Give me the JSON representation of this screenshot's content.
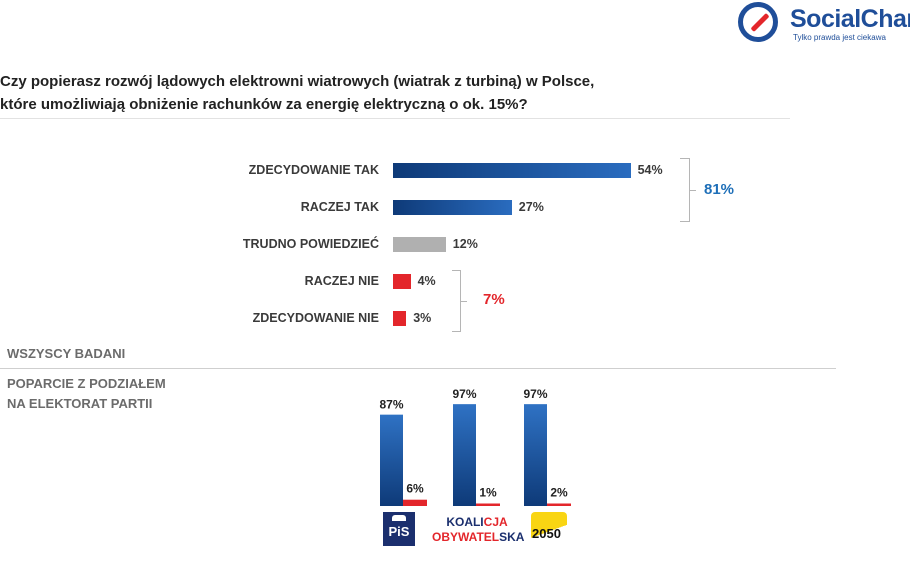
{
  "brand": {
    "name": "SocialChar",
    "tagline": "Tylko prawda jest ciekawa"
  },
  "question": {
    "line1": "Czy popierasz rozwój lądowych elektrowni wiatrowych (wiatrak z turbiną) w Polsce,",
    "line2": "które umożliwiają obniżenie rachunków za energię elektryczną o ok. 15%?"
  },
  "colors": {
    "support": "#1a4f8f",
    "neutral": "#b0b0b0",
    "oppose": "#e3262b",
    "total_support": "#1e6fb8",
    "total_oppose": "#e3262b"
  },
  "chart_data": [
    {
      "type": "bar",
      "orientation": "horizontal",
      "title": "WSZYSCY BADANI",
      "categories": [
        "ZDECYDOWANIE TAK",
        "RACZEJ TAK",
        "TRUDNO POWIEDZIEĆ",
        "RACZEJ NIE",
        "ZDECYDOWANIE NIE"
      ],
      "values": [
        54,
        27,
        12,
        4,
        3
      ],
      "value_labels": [
        "54%",
        "27%",
        "12%",
        "4%",
        "3%"
      ],
      "groups": [
        {
          "name": "support",
          "members": [
            "ZDECYDOWANIE TAK",
            "RACZEJ TAK"
          ],
          "total": 81,
          "label": "81%"
        },
        {
          "name": "oppose",
          "members": [
            "RACZEJ NIE",
            "ZDECYDOWANIE NIE"
          ],
          "total": 7,
          "label": "7%"
        }
      ],
      "unit": "%"
    },
    {
      "type": "bar",
      "orientation": "vertical",
      "title": "POPARCIE Z PODZIAŁEM NA ELEKTORAT PARTII",
      "categories": [
        "PiS",
        "KOALICJA OBYWATELSKA",
        "2050"
      ],
      "series": [
        {
          "name": "support",
          "values": [
            87,
            97,
            97
          ],
          "labels": [
            "87%",
            "97%",
            "97%"
          ]
        },
        {
          "name": "oppose",
          "values": [
            6,
            1,
            2
          ],
          "labels": [
            "6%",
            "1%",
            "2%"
          ]
        }
      ],
      "unit": "%"
    }
  ],
  "sections": {
    "all_label": "WSZYSCY BADANI",
    "party_label_line1": "POPARCIE Z PODZIAŁEM",
    "party_label_line2": "NA ELEKTORAT PARTII"
  },
  "parties": {
    "pis": "PiS",
    "ko_line1_a": "KOALI",
    "ko_line1_b": "CJA",
    "ko_line2_a": "OBYWATEL",
    "ko_line2_b": "SKA",
    "p2050": "2050"
  }
}
